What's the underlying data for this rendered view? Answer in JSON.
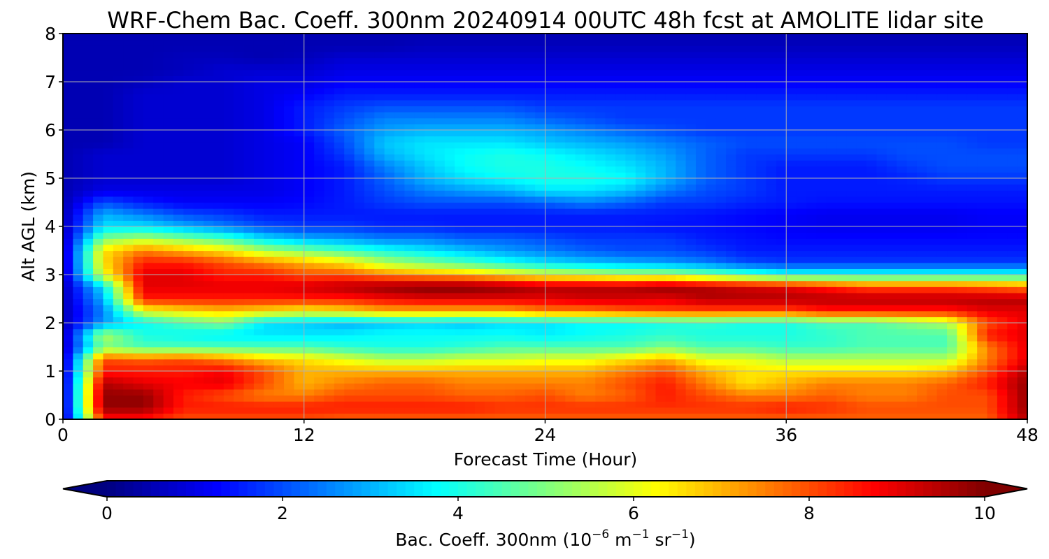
{
  "chart_data": {
    "type": "heatmap",
    "title": "WRF-Chem Bac. Coeff. 300nm  20240914 00UTC 48h fcst at AMOLITE lidar site",
    "xlabel": "Forecast Time (Hour)",
    "ylabel": "Alt AGL (km)",
    "xlim": [
      0,
      48
    ],
    "ylim": [
      0,
      8
    ],
    "xticks": [
      "0",
      "12",
      "24",
      "36",
      "48"
    ],
    "yticks": [
      "0",
      "1",
      "2",
      "3",
      "4",
      "5",
      "6",
      "7",
      "8"
    ],
    "grid": true,
    "colormap": "jet",
    "colorbar": {
      "orientation": "horizontal",
      "placement": "bottom",
      "extend": "both",
      "range": [
        0,
        10
      ],
      "ticks": [
        "0",
        "2",
        "4",
        "6",
        "8",
        "10"
      ],
      "label_main": "Bac. Coeff. 300nm  (10",
      "label_exp1": "−6",
      "label_mid": " m",
      "label_exp2": "−1",
      "label_mid2": " sr",
      "label_exp3": "−1",
      "label_end": ")"
    },
    "x": [
      0,
      2,
      4,
      6,
      8,
      10,
      12,
      14,
      16,
      18,
      20,
      22,
      24,
      26,
      28,
      30,
      32,
      34,
      36,
      38,
      40,
      42,
      44,
      46,
      48
    ],
    "y": [
      0,
      0.25,
      0.5,
      0.75,
      1,
      1.25,
      1.5,
      1.75,
      2,
      2.25,
      2.5,
      2.75,
      3,
      3.25,
      3.5,
      3.75,
      4,
      4.25,
      4.5,
      4.75,
      5,
      5.25,
      5.5,
      5.75,
      6,
      6.25,
      6.5,
      6.75,
      7,
      7.25,
      7.5,
      7.75,
      8
    ],
    "values_note": "z[i][j]: backscatter at y[i] km and x[j] hours, units 1e-6 m-1 sr-1",
    "z": [
      [
        0.5,
        8.5,
        8.5,
        8.0,
        8.0,
        8.0,
        8.0,
        7.8,
        7.8,
        7.8,
        7.8,
        7.8,
        7.8,
        7.8,
        7.8,
        7.8,
        7.8,
        7.8,
        7.8,
        7.8,
        7.8,
        7.8,
        7.8,
        7.8,
        9.5
      ],
      [
        0.5,
        9.8,
        9.8,
        8.5,
        8.5,
        8.5,
        8.5,
        8.5,
        8.5,
        8.5,
        8.5,
        8.3,
        8.3,
        8.3,
        8.3,
        8.3,
        8.3,
        8.3,
        8.5,
        8.3,
        8.0,
        8.0,
        8.0,
        8.0,
        9.8
      ],
      [
        0.5,
        9.8,
        9.8,
        8.5,
        8.0,
        7.5,
        7.5,
        8.0,
        8.0,
        8.0,
        7.8,
        7.8,
        8.0,
        7.5,
        7.8,
        8.5,
        8.0,
        7.5,
        7.5,
        7.8,
        7.5,
        7.5,
        8.0,
        8.0,
        9.8
      ],
      [
        0.5,
        9.5,
        9.0,
        8.8,
        9.0,
        8.0,
        7.0,
        7.5,
        7.8,
        7.8,
        7.5,
        7.5,
        7.5,
        7.5,
        8.0,
        8.5,
        7.5,
        6.5,
        7.0,
        7.5,
        7.5,
        7.5,
        7.8,
        8.5,
        9.8
      ],
      [
        0.5,
        8.5,
        8.5,
        8.5,
        8.8,
        8.0,
        7.0,
        7.0,
        7.0,
        7.0,
        7.0,
        7.0,
        7.0,
        7.0,
        7.5,
        8.0,
        7.0,
        6.5,
        6.5,
        6.5,
        6.5,
        6.5,
        6.8,
        8.0,
        9.5
      ],
      [
        0.5,
        8.0,
        7.8,
        8.0,
        7.5,
        6.8,
        6.5,
        6.0,
        5.5,
        5.5,
        5.8,
        5.8,
        6.0,
        6.0,
        6.5,
        7.0,
        6.0,
        6.0,
        5.5,
        5.5,
        5.5,
        5.5,
        5.5,
        7.5,
        9.0
      ],
      [
        0.5,
        5.0,
        4.5,
        4.5,
        4.5,
        4.5,
        4.5,
        4.2,
        4.0,
        4.0,
        4.2,
        4.5,
        4.5,
        4.5,
        4.5,
        5.0,
        4.5,
        4.5,
        4.3,
        4.3,
        4.5,
        4.5,
        4.5,
        7.5,
        9.0
      ],
      [
        0.5,
        5.5,
        4.0,
        3.8,
        3.6,
        3.5,
        3.5,
        3.6,
        3.8,
        3.8,
        3.8,
        3.8,
        3.6,
        3.8,
        4.0,
        4.2,
        4.0,
        4.0,
        4.0,
        4.2,
        4.5,
        4.5,
        4.5,
        8.5,
        9.0
      ],
      [
        0.5,
        2.8,
        3.8,
        4.5,
        5.0,
        3.5,
        3.3,
        3.0,
        3.2,
        3.4,
        3.2,
        3.5,
        3.5,
        3.8,
        3.8,
        4.0,
        4.2,
        4.0,
        4.0,
        4.5,
        4.5,
        5.0,
        5.5,
        8.0,
        9.0
      ],
      [
        0.5,
        2.5,
        6.0,
        6.5,
        6.8,
        6.5,
        6.2,
        6.5,
        7.0,
        7.0,
        7.0,
        7.0,
        7.5,
        7.5,
        7.8,
        8.0,
        8.0,
        8.0,
        8.0,
        8.5,
        8.5,
        8.5,
        8.5,
        9.0,
        9.0
      ],
      [
        0.5,
        3.0,
        8.5,
        8.5,
        8.5,
        8.5,
        8.5,
        8.5,
        8.8,
        9.0,
        9.0,
        9.0,
        9.0,
        9.2,
        9.2,
        9.0,
        9.5,
        9.5,
        9.5,
        9.5,
        9.5,
        9.5,
        9.5,
        9.5,
        9.5
      ],
      [
        0.5,
        3.5,
        9.0,
        9.0,
        9.0,
        9.0,
        9.2,
        9.5,
        9.8,
        10.0,
        10.0,
        9.8,
        9.5,
        9.5,
        9.5,
        9.8,
        9.5,
        9.2,
        9.0,
        8.5,
        8.0,
        8.0,
        8.0,
        7.8,
        7.5
      ],
      [
        0.5,
        6.0,
        9.0,
        9.0,
        8.5,
        8.5,
        8.0,
        8.0,
        7.5,
        7.2,
        7.0,
        6.5,
        6.0,
        5.8,
        5.5,
        5.5,
        5.0,
        4.5,
        4.0,
        4.0,
        4.0,
        4.0,
        4.0,
        4.0,
        4.0
      ],
      [
        0.5,
        6.5,
        8.5,
        8.5,
        8.0,
        7.5,
        7.0,
        6.5,
        5.5,
        5.0,
        4.5,
        4.0,
        3.5,
        3.2,
        3.0,
        2.8,
        2.5,
        2.0,
        1.8,
        1.8,
        1.8,
        1.8,
        1.8,
        1.8,
        1.8
      ],
      [
        0.5,
        6.5,
        7.5,
        7.0,
        6.5,
        5.5,
        5.0,
        4.5,
        4.0,
        3.6,
        3.2,
        2.8,
        2.5,
        2.2,
        2.0,
        2.0,
        1.8,
        1.5,
        1.5,
        1.5,
        1.5,
        1.5,
        1.5,
        1.5,
        1.5
      ],
      [
        0.5,
        5.0,
        5.5,
        5.0,
        4.5,
        3.5,
        3.0,
        2.8,
        2.5,
        2.5,
        2.2,
        2.2,
        2.0,
        1.8,
        1.8,
        1.8,
        1.5,
        1.4,
        1.3,
        1.3,
        1.3,
        1.3,
        1.3,
        1.3,
        1.3
      ],
      [
        0.5,
        3.5,
        3.5,
        3.0,
        2.5,
        2.0,
        1.8,
        1.8,
        1.6,
        1.6,
        1.5,
        1.5,
        1.5,
        1.5,
        1.5,
        1.4,
        1.4,
        1.3,
        1.2,
        1.1,
        1.1,
        1.1,
        1.1,
        1.2,
        1.2
      ],
      [
        0.5,
        3.0,
        2.5,
        2.0,
        1.8,
        1.5,
        1.5,
        1.5,
        1.5,
        1.5,
        1.5,
        1.5,
        1.5,
        1.5,
        1.5,
        1.5,
        1.4,
        1.3,
        1.2,
        1.1,
        1.1,
        1.1,
        1.1,
        1.2,
        1.2
      ],
      [
        0.5,
        2.0,
        1.5,
        1.2,
        1.2,
        1.2,
        1.3,
        1.5,
        1.8,
        2.0,
        2.0,
        2.0,
        2.2,
        2.5,
        2.2,
        1.8,
        1.8,
        1.6,
        1.5,
        1.4,
        1.4,
        1.4,
        1.4,
        1.4,
        1.4
      ],
      [
        0.5,
        1.0,
        1.0,
        1.0,
        1.0,
        1.0,
        1.2,
        1.5,
        2.0,
        2.5,
        2.8,
        3.0,
        3.5,
        3.5,
        3.2,
        2.5,
        2.0,
        1.8,
        1.5,
        1.5,
        1.5,
        1.5,
        1.5,
        1.5,
        1.5
      ],
      [
        0.5,
        0.8,
        0.8,
        0.8,
        0.8,
        1.0,
        1.2,
        1.5,
        2.2,
        3.0,
        3.5,
        3.8,
        4.0,
        4.0,
        3.8,
        3.0,
        2.2,
        1.8,
        1.5,
        1.5,
        1.5,
        1.6,
        1.8,
        1.8,
        1.8
      ],
      [
        0.5,
        0.8,
        0.8,
        0.8,
        0.8,
        1.0,
        1.2,
        1.5,
        2.5,
        3.2,
        3.8,
        4.0,
        4.0,
        3.8,
        3.5,
        3.0,
        2.2,
        1.8,
        1.5,
        1.5,
        1.5,
        1.8,
        2.0,
        2.0,
        2.0
      ],
      [
        0.5,
        0.8,
        0.8,
        0.8,
        0.8,
        1.0,
        1.2,
        1.8,
        3.0,
        3.5,
        3.8,
        4.0,
        3.8,
        3.5,
        3.2,
        2.8,
        2.2,
        1.8,
        1.8,
        1.8,
        1.8,
        2.0,
        2.0,
        2.0,
        2.0
      ],
      [
        0.5,
        0.5,
        0.8,
        0.8,
        0.8,
        1.0,
        1.2,
        2.0,
        3.2,
        3.5,
        3.5,
        3.5,
        3.2,
        3.0,
        2.8,
        2.5,
        2.2,
        2.0,
        2.0,
        2.0,
        2.0,
        2.0,
        2.0,
        1.8,
        1.8
      ],
      [
        0.5,
        0.5,
        0.8,
        0.8,
        0.8,
        1.0,
        1.5,
        2.2,
        2.8,
        3.0,
        3.0,
        3.0,
        2.8,
        2.5,
        2.2,
        2.0,
        1.8,
        1.8,
        1.8,
        1.8,
        1.8,
        1.8,
        1.8,
        1.8,
        1.8
      ],
      [
        0.5,
        0.5,
        0.8,
        0.8,
        0.8,
        1.0,
        1.5,
        2.0,
        2.5,
        2.5,
        2.5,
        2.5,
        2.2,
        2.0,
        1.8,
        1.8,
        1.8,
        1.8,
        1.8,
        1.8,
        1.8,
        1.8,
        1.8,
        1.8,
        1.8
      ],
      [
        0.5,
        0.5,
        0.8,
        0.8,
        0.8,
        1.0,
        1.5,
        1.8,
        2.0,
        2.0,
        2.0,
        2.0,
        1.8,
        1.8,
        1.8,
        1.8,
        1.8,
        1.8,
        1.8,
        1.8,
        1.8,
        1.8,
        1.8,
        1.8,
        1.8
      ],
      [
        0.5,
        0.5,
        0.8,
        0.8,
        0.8,
        1.0,
        1.2,
        1.5,
        1.5,
        1.5,
        1.5,
        1.5,
        1.5,
        1.5,
        1.5,
        1.5,
        1.5,
        1.5,
        1.5,
        1.5,
        1.5,
        1.5,
        1.5,
        1.5,
        1.5
      ],
      [
        0.5,
        0.5,
        0.6,
        0.8,
        0.8,
        1.0,
        1.0,
        1.2,
        1.2,
        1.2,
        1.2,
        1.2,
        1.2,
        1.2,
        1.2,
        1.2,
        1.2,
        1.2,
        1.2,
        1.2,
        1.2,
        1.2,
        1.2,
        1.2,
        1.2
      ],
      [
        0.5,
        0.5,
        0.5,
        0.6,
        0.8,
        0.8,
        0.8,
        1.0,
        1.0,
        1.0,
        1.0,
        1.0,
        1.0,
        1.0,
        1.0,
        1.0,
        1.0,
        1.0,
        1.0,
        1.0,
        1.0,
        1.0,
        1.0,
        1.0,
        1.0
      ],
      [
        0.5,
        0.5,
        0.5,
        0.6,
        0.6,
        0.5,
        0.6,
        0.8,
        0.8,
        0.8,
        0.8,
        0.8,
        0.8,
        0.8,
        0.8,
        0.8,
        0.8,
        0.8,
        0.8,
        0.8,
        0.8,
        0.8,
        0.8,
        0.8,
        0.8
      ],
      [
        0.5,
        0.5,
        0.5,
        0.5,
        0.5,
        0.5,
        0.5,
        0.5,
        0.5,
        0.6,
        0.6,
        0.6,
        0.6,
        0.6,
        0.6,
        0.6,
        0.6,
        0.6,
        0.6,
        0.6,
        0.6,
        0.6,
        0.6,
        0.6,
        0.6
      ],
      [
        0.5,
        0.5,
        0.5,
        0.5,
        0.5,
        0.5,
        0.5,
        0.5,
        0.5,
        0.5,
        0.5,
        0.5,
        0.5,
        0.5,
        0.5,
        0.5,
        0.5,
        0.5,
        0.5,
        0.5,
        0.5,
        0.5,
        0.5,
        0.5,
        0.5
      ]
    ]
  }
}
